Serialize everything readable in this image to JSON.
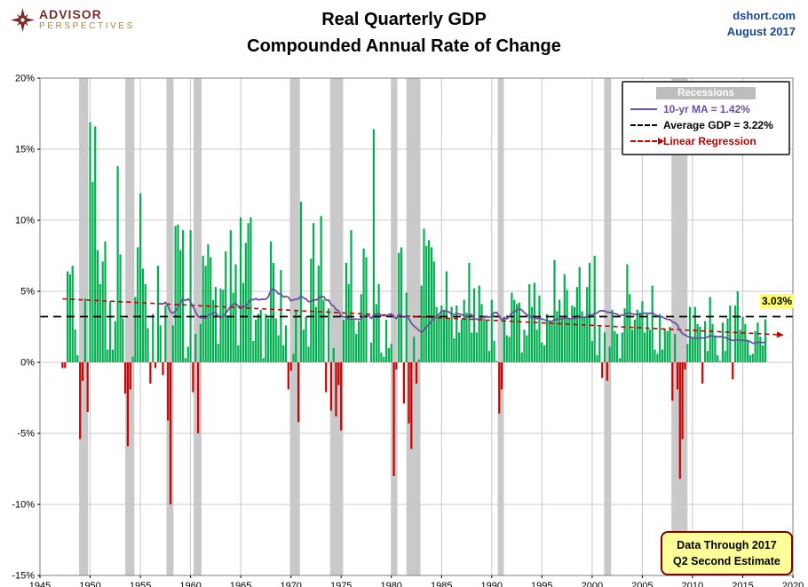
{
  "header": {
    "logo": {
      "icon": "compass-star-icon",
      "line1": "ADVISOR",
      "line2": "PERSPECTIVES"
    },
    "title_line1": "Real Quarterly GDP",
    "title_line2": "Compounded Annual Rate of Change",
    "source": "dshort.com",
    "date": "August 2017"
  },
  "legend": {
    "recessions_label": "Recessions",
    "ma_label": "10-yr MA = 1.42%",
    "avg_label": "Average GDP = 3.22%",
    "regression_label": "Linear Regression"
  },
  "annotations": {
    "latest_value": "3.03%",
    "note_line1": "Data Through 2017",
    "note_line2": "Q2 Second Estimate"
  },
  "colors": {
    "positive_bar": "#00B050",
    "negative_bar": "#CC0000",
    "ma_line": "#6B4FA1",
    "average_line": "#000000",
    "regression_line": "#C00000",
    "recession_band": "#C9C9C9",
    "gridline": "#C8C8C8",
    "plot_border": "#7F7F7F",
    "source_blue": "#17479E",
    "brand_maroon": "#7A2A2B",
    "brand_gold": "#A8863D",
    "highlight_yellow": "#FFFF66",
    "note_bg": "#FFFF99",
    "note_border": "#7F0000"
  },
  "chart_data": {
    "type": "bar",
    "title": "Real Quarterly GDP — Compounded Annual Rate of Change",
    "xlabel": "",
    "ylabel": "",
    "x_start": 1947.25,
    "x_step": 0.25,
    "xlim": [
      1945,
      2020
    ],
    "ylim": [
      -15,
      20
    ],
    "x_ticks": [
      1945,
      1950,
      1955,
      1960,
      1965,
      1970,
      1975,
      1980,
      1985,
      1990,
      1995,
      2000,
      2005,
      2010,
      2015,
      2020
    ],
    "y_ticks": [
      -15,
      -10,
      -5,
      0,
      5,
      10,
      15,
      20
    ],
    "y_tick_suffix": "%",
    "grid": true,
    "legend_position": "top-right",
    "average_gdp": 3.22,
    "ma_window_quarters": 40,
    "ma_final": 1.42,
    "latest_value": 3.03,
    "values": [
      -0.4,
      -0.4,
      6.4,
      6.2,
      6.8,
      2.3,
      0.5,
      -5.4,
      -1.3,
      4.5,
      -3.5,
      16.9,
      12.7,
      16.6,
      7.9,
      5.5,
      7.1,
      8.5,
      0.9,
      4.3,
      0.9,
      2.9,
      13.8,
      7.6,
      3.1,
      -2.2,
      -5.9,
      -1.9,
      0.4,
      4.6,
      8.1,
      11.9,
      6.6,
      5.5,
      2.4,
      -1.5,
      3.4,
      -0.4,
      6.8,
      2.6,
      -0.9,
      4.0,
      -4.1,
      -10.0,
      2.6,
      9.6,
      9.7,
      7.9,
      9.3,
      0.3,
      1.1,
      9.3,
      -2.1,
      2.0,
      -5.0,
      2.7,
      7.5,
      6.8,
      8.3,
      7.4,
      4.4,
      5.3,
      1.3,
      5.2,
      5.1,
      7.8,
      3.3,
      9.3,
      4.9,
      6.9,
      1.2,
      10.2,
      5.6,
      8.4,
      9.8,
      10.2,
      1.5,
      3.0,
      3.4,
      3.7,
      0.3,
      3.4,
      3.1,
      8.5,
      7.0,
      3.1,
      1.9,
      6.5,
      1.2,
      2.6,
      -1.9,
      -0.6,
      0.6,
      3.7,
      -4.2,
      11.3,
      2.3,
      3.2,
      1.1,
      7.3,
      9.8,
      3.9,
      6.8,
      10.3,
      4.4,
      -2.1,
      3.8,
      -3.4,
      1.0,
      -3.8,
      -1.6,
      -4.8,
      3.0,
      7.0,
      5.5,
      9.3,
      3.0,
      2.0,
      2.9,
      4.8,
      8.0,
      7.4,
      0.0,
      1.4,
      16.4,
      4.1,
      5.5,
      0.7,
      0.4,
      3.0,
      1.0,
      1.3,
      -8.0,
      -0.5,
      7.7,
      8.1,
      -2.9,
      4.9,
      -4.3,
      -6.1,
      1.8,
      -1.5,
      0.2,
      5.4,
      9.4,
      8.2,
      8.6,
      8.1,
      7.1,
      3.9,
      3.3,
      4.0,
      3.7,
      6.4,
      3.1,
      3.9,
      1.7,
      4.0,
      2.1,
      3.0,
      4.4,
      3.5,
      7.0,
      2.1,
      5.2,
      2.1,
      5.4,
      4.1,
      3.1,
      3.0,
      0.8,
      4.4,
      1.5,
      0.1,
      -3.6,
      -1.9,
      3.2,
      1.9,
      1.8,
      4.9,
      4.4,
      4.1,
      4.2,
      0.7,
      2.3,
      1.9,
      5.5,
      3.9,
      5.6,
      2.3,
      4.7,
      1.4,
      1.2,
      3.4,
      2.9,
      2.7,
      7.2,
      3.6,
      4.4,
      3.1,
      6.2,
      5.1,
      3.1,
      4.0,
      3.9,
      5.3,
      6.7,
      3.6,
      3.2,
      5.3,
      7.0,
      1.5,
      7.5,
      0.5,
      2.5,
      -1.1,
      2.1,
      -1.3,
      1.1,
      3.7,
      2.2,
      2.0,
      0.3,
      2.1,
      3.8,
      6.9,
      4.8,
      2.3,
      3.0,
      3.7,
      3.5,
      4.3,
      2.1,
      3.4,
      2.3,
      5.4,
      0.9,
      0.6,
      3.4,
      0.9,
      2.3,
      2.2,
      2.5,
      -2.7,
      2.0,
      -1.9,
      -8.2,
      -5.4,
      -0.5,
      1.3,
      3.9,
      1.7,
      3.9,
      2.7,
      2.5,
      -1.5,
      2.9,
      0.8,
      4.6,
      2.7,
      1.9,
      0.5,
      0.1,
      2.8,
      0.8,
      3.1,
      4.0,
      -1.2,
      4.0,
      5.0,
      2.3,
      3.2,
      2.7,
      1.6,
      0.5,
      0.6,
      2.2,
      2.8,
      1.8,
      1.2,
      3.03
    ],
    "recessions": [
      [
        1948.9,
        1949.8
      ],
      [
        1953.5,
        1954.4
      ],
      [
        1957.6,
        1958.3
      ],
      [
        1960.3,
        1961.1
      ],
      [
        1969.9,
        1970.9
      ],
      [
        1973.9,
        1975.2
      ],
      [
        1980.0,
        1980.6
      ],
      [
        1981.5,
        1982.9
      ],
      [
        1990.6,
        1991.2
      ],
      [
        2001.2,
        2001.9
      ],
      [
        2007.9,
        2009.5
      ]
    ]
  }
}
